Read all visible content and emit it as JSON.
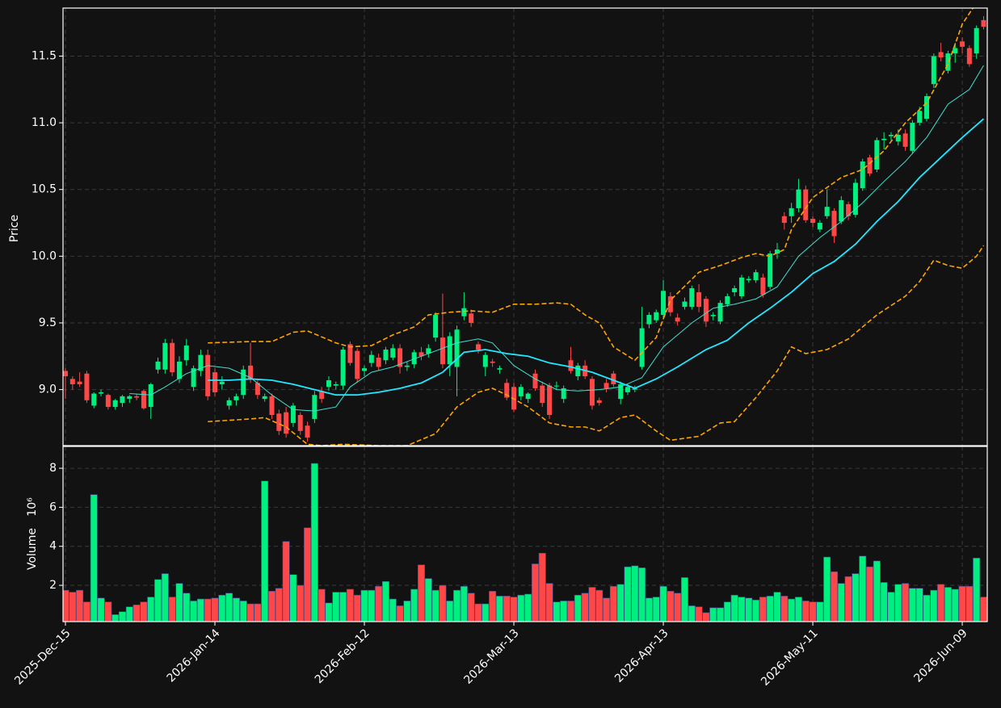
{
  "chart_data": {
    "type": "candlestick",
    "ylabel": "Price",
    "volume_label": "Volume",
    "volume_scale_label": "10⁶",
    "up_color": "#00f080",
    "down_color": "#ff4747",
    "grid": true,
    "categories": [
      "2025-Dec-15",
      null,
      null,
      null,
      null,
      null,
      null,
      null,
      null,
      null,
      null,
      null,
      null,
      null,
      null,
      null,
      null,
      null,
      null,
      null,
      null,
      "2026-Jan-14",
      null,
      null,
      null,
      null,
      null,
      null,
      null,
      null,
      null,
      null,
      null,
      null,
      null,
      null,
      null,
      null,
      null,
      null,
      null,
      null,
      "2026-Feb-12",
      null,
      null,
      null,
      null,
      null,
      null,
      null,
      null,
      null,
      null,
      null,
      null,
      null,
      null,
      null,
      null,
      null,
      null,
      null,
      null,
      "2026-Mar-13",
      null,
      null,
      null,
      null,
      null,
      null,
      null,
      null,
      null,
      null,
      null,
      null,
      null,
      null,
      null,
      null,
      null,
      null,
      null,
      null,
      "2026-Apr-13",
      null,
      null,
      null,
      null,
      null,
      null,
      null,
      null,
      null,
      null,
      null,
      null,
      null,
      null,
      null,
      null,
      null,
      null,
      null,
      null,
      "2026-May-11",
      null,
      null,
      null,
      null,
      null,
      null,
      null,
      null,
      null,
      null,
      null,
      null,
      null,
      null,
      null,
      null,
      null,
      null,
      null,
      null,
      "2026-Jun-09",
      null,
      null,
      null
    ],
    "ohlc": [
      [
        9.14,
        9.16,
        8.93,
        9.1
      ],
      [
        9.08,
        9.1,
        9.0,
        9.04
      ],
      [
        9.06,
        9.13,
        9.02,
        9.04
      ],
      [
        9.12,
        9.14,
        8.9,
        8.92
      ],
      [
        8.88,
        8.98,
        8.86,
        8.97
      ],
      [
        8.97,
        9.0,
        8.95,
        8.98
      ],
      [
        8.96,
        8.97,
        8.85,
        8.87
      ],
      [
        8.87,
        8.93,
        8.85,
        8.92
      ],
      [
        8.9,
        8.96,
        8.87,
        8.95
      ],
      [
        8.93,
        8.96,
        8.9,
        8.95
      ],
      [
        8.95,
        8.97,
        8.92,
        8.94
      ],
      [
        8.99,
        9.0,
        8.85,
        8.86
      ],
      [
        8.87,
        9.05,
        8.78,
        9.04
      ],
      [
        9.15,
        9.24,
        9.12,
        9.21
      ],
      [
        9.15,
        9.38,
        9.12,
        9.35
      ],
      [
        9.35,
        9.38,
        9.1,
        9.13
      ],
      [
        9.08,
        9.25,
        9.05,
        9.21
      ],
      [
        9.22,
        9.38,
        9.18,
        9.33
      ],
      [
        9.02,
        9.18,
        8.99,
        9.16
      ],
      [
        9.14,
        9.3,
        9.1,
        9.26
      ],
      [
        9.26,
        9.3,
        8.92,
        8.95
      ],
      [
        9.13,
        9.16,
        8.95,
        8.98
      ],
      [
        9.04,
        9.1,
        9.0,
        9.06
      ],
      [
        8.88,
        8.94,
        8.85,
        8.92
      ],
      [
        8.92,
        8.97,
        8.88,
        8.95
      ],
      [
        8.96,
        9.18,
        8.93,
        9.15
      ],
      [
        9.18,
        9.35,
        9.05,
        9.08
      ],
      [
        9.05,
        9.08,
        8.93,
        8.96
      ],
      [
        8.93,
        8.97,
        8.91,
        8.95
      ],
      [
        8.95,
        8.97,
        8.78,
        8.81
      ],
      [
        8.82,
        8.85,
        8.66,
        8.69
      ],
      [
        8.83,
        8.87,
        8.64,
        8.67
      ],
      [
        8.75,
        8.9,
        8.72,
        8.88
      ],
      [
        8.81,
        8.83,
        8.66,
        8.69
      ],
      [
        8.73,
        8.76,
        8.61,
        8.64
      ],
      [
        8.78,
        8.99,
        8.75,
        8.96
      ],
      [
        8.99,
        9.02,
        8.9,
        8.93
      ],
      [
        9.02,
        9.1,
        8.99,
        9.07
      ],
      [
        9.03,
        9.06,
        9.0,
        9.04
      ],
      [
        9.03,
        9.32,
        9.0,
        9.3
      ],
      [
        9.34,
        9.36,
        9.18,
        9.2
      ],
      [
        9.29,
        9.31,
        9.05,
        9.08
      ],
      [
        9.14,
        9.18,
        9.1,
        9.16
      ],
      [
        9.2,
        9.29,
        9.17,
        9.26
      ],
      [
        9.24,
        9.27,
        9.14,
        9.17
      ],
      [
        9.22,
        9.32,
        9.19,
        9.3
      ],
      [
        9.24,
        9.34,
        9.22,
        9.31
      ],
      [
        9.31,
        9.34,
        9.12,
        9.17
      ],
      [
        9.17,
        9.21,
        9.14,
        9.18
      ],
      [
        9.19,
        9.3,
        9.16,
        9.28
      ],
      [
        9.28,
        9.32,
        9.22,
        9.25
      ],
      [
        9.27,
        9.34,
        9.24,
        9.31
      ],
      [
        9.39,
        9.58,
        9.36,
        9.56
      ],
      [
        9.39,
        9.72,
        9.16,
        9.19
      ],
      [
        9.19,
        9.43,
        9.1,
        9.4
      ],
      [
        9.17,
        9.48,
        8.95,
        9.45
      ],
      [
        9.55,
        9.73,
        9.52,
        9.61
      ],
      [
        9.57,
        9.6,
        9.47,
        9.5
      ],
      [
        9.34,
        9.36,
        9.27,
        9.3
      ],
      [
        9.17,
        9.28,
        9.1,
        9.26
      ],
      [
        9.21,
        9.23,
        9.17,
        9.2
      ],
      [
        9.15,
        9.18,
        9.12,
        9.16
      ],
      [
        9.05,
        9.08,
        8.92,
        8.94
      ],
      [
        9.02,
        9.05,
        8.83,
        8.85
      ],
      [
        8.95,
        9.04,
        8.92,
        9.02
      ],
      [
        8.93,
        8.98,
        8.9,
        8.97
      ],
      [
        9.12,
        9.15,
        8.99,
        9.01
      ],
      [
        9.03,
        9.06,
        8.87,
        8.9
      ],
      [
        9.03,
        9.05,
        8.78,
        8.81
      ],
      [
        9.03,
        9.06,
        9.0,
        9.03
      ],
      [
        8.93,
        9.03,
        8.9,
        9.01
      ],
      [
        9.22,
        9.32,
        9.12,
        9.14
      ],
      [
        9.1,
        9.2,
        9.07,
        9.18
      ],
      [
        9.18,
        9.22,
        9.08,
        9.1
      ],
      [
        9.08,
        9.1,
        8.85,
        8.88
      ],
      [
        8.92,
        8.94,
        8.88,
        8.9
      ],
      [
        9.05,
        9.08,
        8.98,
        9.01
      ],
      [
        9.12,
        9.14,
        9.02,
        9.04
      ],
      [
        8.93,
        9.06,
        8.89,
        9.04
      ],
      [
        8.98,
        9.04,
        8.96,
        9.02
      ],
      [
        9.0,
        9.03,
        8.98,
        9.01
      ],
      [
        9.17,
        9.62,
        9.15,
        9.46
      ],
      [
        9.49,
        9.58,
        9.46,
        9.56
      ],
      [
        9.52,
        9.6,
        9.5,
        9.58
      ],
      [
        9.56,
        9.82,
        9.54,
        9.74
      ],
      [
        9.7,
        9.73,
        9.55,
        9.58
      ],
      [
        9.54,
        9.57,
        9.48,
        9.51
      ],
      [
        9.62,
        9.69,
        9.6,
        9.66
      ],
      [
        9.62,
        9.78,
        9.6,
        9.76
      ],
      [
        9.73,
        9.79,
        9.58,
        9.62
      ],
      [
        9.68,
        9.7,
        9.47,
        9.51
      ],
      [
        9.55,
        9.58,
        9.52,
        9.56
      ],
      [
        9.51,
        9.67,
        9.49,
        9.65
      ],
      [
        9.64,
        9.72,
        9.62,
        9.7
      ],
      [
        9.73,
        9.78,
        9.7,
        9.76
      ],
      [
        9.7,
        9.86,
        9.68,
        9.84
      ],
      [
        9.82,
        9.85,
        9.8,
        9.83
      ],
      [
        9.82,
        9.9,
        9.8,
        9.88
      ],
      [
        9.84,
        9.87,
        9.69,
        9.71
      ],
      [
        9.77,
        10.04,
        9.75,
        10.02
      ],
      [
        10.02,
        10.1,
        9.98,
        10.05
      ],
      [
        10.3,
        10.33,
        10.2,
        10.25
      ],
      [
        10.3,
        10.4,
        10.25,
        10.36
      ],
      [
        10.36,
        10.58,
        10.33,
        10.5
      ],
      [
        10.5,
        10.53,
        10.25,
        10.27
      ],
      [
        10.28,
        10.3,
        10.22,
        10.25
      ],
      [
        10.2,
        10.27,
        10.18,
        10.25
      ],
      [
        10.3,
        10.5,
        10.28,
        10.37
      ],
      [
        10.34,
        10.36,
        10.1,
        10.15
      ],
      [
        10.26,
        10.45,
        10.24,
        10.42
      ],
      [
        10.39,
        10.41,
        10.27,
        10.3
      ],
      [
        10.31,
        10.58,
        10.29,
        10.55
      ],
      [
        10.51,
        10.73,
        10.49,
        10.71
      ],
      [
        10.74,
        10.76,
        10.6,
        10.62
      ],
      [
        10.65,
        10.89,
        10.63,
        10.87
      ],
      [
        10.87,
        10.93,
        10.8,
        10.88
      ],
      [
        10.9,
        10.93,
        10.87,
        10.91
      ],
      [
        10.86,
        10.95,
        10.83,
        10.91
      ],
      [
        10.92,
        10.95,
        10.79,
        10.82
      ],
      [
        10.79,
        11.02,
        10.77,
        11.0
      ],
      [
        11.0,
        11.12,
        10.98,
        11.09
      ],
      [
        11.03,
        11.22,
        11.01,
        11.2
      ],
      [
        11.29,
        11.52,
        11.26,
        11.5
      ],
      [
        11.53,
        11.6,
        11.46,
        11.49
      ],
      [
        11.39,
        11.54,
        11.37,
        11.52
      ],
      [
        11.52,
        11.6,
        11.45,
        11.56
      ],
      [
        11.61,
        11.64,
        11.52,
        11.57
      ],
      [
        11.56,
        11.58,
        11.42,
        11.44
      ],
      [
        11.52,
        11.73,
        11.48,
        11.71
      ],
      [
        11.77,
        11.8,
        11.7,
        11.72
      ]
    ],
    "volume": [
      1.75,
      1.65,
      1.75,
      1.15,
      6.65,
      1.35,
      1.15,
      0.5,
      0.65,
      0.9,
      1.0,
      1.15,
      1.4,
      2.3,
      2.6,
      1.4,
      2.1,
      1.6,
      1.2,
      1.3,
      1.3,
      1.35,
      1.5,
      1.6,
      1.35,
      1.2,
      1.05,
      1.05,
      7.35,
      1.7,
      1.85,
      4.25,
      2.55,
      2.0,
      4.95,
      8.25,
      1.8,
      1.1,
      1.65,
      1.65,
      1.8,
      1.5,
      1.75,
      1.75,
      1.95,
      2.2,
      1.3,
      0.95,
      1.2,
      1.8,
      3.05,
      2.35,
      1.75,
      2.0,
      1.2,
      1.75,
      1.95,
      1.6,
      1.05,
      1.05,
      1.7,
      1.45,
      1.45,
      1.4,
      1.5,
      1.55,
      3.1,
      3.65,
      2.1,
      1.15,
      1.2,
      1.2,
      1.5,
      1.6,
      1.9,
      1.75,
      1.35,
      1.95,
      2.05,
      2.95,
      3.0,
      2.9,
      1.35,
      1.4,
      1.95,
      1.7,
      1.6,
      2.4,
      0.95,
      0.9,
      0.6,
      0.85,
      0.85,
      1.15,
      1.5,
      1.4,
      1.35,
      1.25,
      1.4,
      1.45,
      1.65,
      1.45,
      1.3,
      1.4,
      1.2,
      1.15,
      1.15,
      3.45,
      2.7,
      2.1,
      2.45,
      2.6,
      3.5,
      2.95,
      3.25,
      2.15,
      1.65,
      2.05,
      2.1,
      1.85,
      1.85,
      1.5,
      1.75,
      2.05,
      1.9,
      1.8,
      1.95,
      1.95,
      3.4,
      1.4
    ],
    "overlays": [
      {
        "color": "#40e0d0",
        "linestyle": "solid",
        "x": [
          9,
          12,
          14,
          17,
          20,
          23,
          26,
          29,
          32,
          35,
          38,
          40,
          43,
          46,
          49,
          52,
          55,
          58,
          60,
          63,
          66,
          69,
          72,
          75,
          78,
          81,
          84,
          88,
          91,
          94,
          97,
          100,
          103,
          106,
          109,
          112,
          115,
          118,
          121,
          124,
          127,
          129
        ],
        "values": [
          8.97,
          8.96,
          9.02,
          9.12,
          9.18,
          9.16,
          9.09,
          8.96,
          8.85,
          8.84,
          8.87,
          9.02,
          9.13,
          9.17,
          9.23,
          9.29,
          9.35,
          9.38,
          9.35,
          9.18,
          9.08,
          9.0,
          8.99,
          9.0,
          9.02,
          9.09,
          9.32,
          9.5,
          9.61,
          9.64,
          9.68,
          9.77,
          10.0,
          10.14,
          10.26,
          10.4,
          10.56,
          10.71,
          10.89,
          11.14,
          11.25,
          11.43
        ]
      },
      {
        "color": "#22e8ff",
        "linestyle": "solid",
        "x": [
          20,
          23,
          26,
          29,
          32,
          35,
          38,
          41,
          44,
          47,
          50,
          53,
          56,
          59,
          62,
          65,
          68,
          71,
          74,
          77,
          80,
          83,
          86,
          90,
          93,
          96,
          99,
          102,
          105,
          108,
          111,
          114,
          117,
          120,
          123,
          126,
          129
        ],
        "values": [
          9.07,
          9.07,
          9.08,
          9.07,
          9.04,
          9.0,
          8.96,
          8.96,
          8.98,
          9.01,
          9.05,
          9.13,
          9.28,
          9.3,
          9.27,
          9.25,
          9.2,
          9.17,
          9.13,
          9.07,
          9.01,
          9.08,
          9.17,
          9.3,
          9.37,
          9.5,
          9.61,
          9.73,
          9.87,
          9.96,
          10.09,
          10.26,
          10.41,
          10.59,
          10.74,
          10.89,
          11.03
        ]
      },
      {
        "color": "#ffa500",
        "linestyle": "dashed",
        "x": [
          20,
          26,
          29,
          32,
          34,
          38,
          40,
          43,
          46,
          49,
          51,
          54,
          57,
          60,
          63,
          66,
          69,
          71,
          73,
          75,
          77,
          80,
          83,
          85,
          89,
          92,
          95,
          97,
          99,
          101,
          102,
          105,
          109,
          112,
          115,
          118,
          121,
          124,
          126,
          128
        ],
        "values": [
          9.35,
          9.36,
          9.36,
          9.43,
          9.44,
          9.35,
          9.32,
          9.33,
          9.41,
          9.47,
          9.56,
          9.58,
          9.59,
          9.58,
          9.64,
          9.64,
          9.65,
          9.64,
          9.56,
          9.5,
          9.32,
          9.22,
          9.39,
          9.67,
          9.88,
          9.93,
          9.99,
          10.02,
          10.0,
          10.05,
          10.2,
          10.44,
          10.59,
          10.65,
          10.79,
          11.0,
          11.15,
          11.44,
          11.74,
          11.9
        ]
      },
      {
        "color": "#ffa500",
        "linestyle": "dashed",
        "x": [
          20,
          26,
          28,
          31,
          34,
          36,
          39,
          44,
          48,
          52,
          55,
          58,
          60,
          62,
          65,
          68,
          71,
          73,
          75,
          78,
          80,
          83,
          85,
          89,
          92,
          94,
          97,
          100,
          102,
          104,
          107,
          110,
          114,
          118,
          120,
          122,
          124,
          126,
          128,
          129
        ],
        "values": [
          8.76,
          8.78,
          8.79,
          8.72,
          8.59,
          8.58,
          8.59,
          8.58,
          8.58,
          8.67,
          8.87,
          8.98,
          9.01,
          8.96,
          8.87,
          8.75,
          8.72,
          8.72,
          8.69,
          8.79,
          8.81,
          8.69,
          8.62,
          8.65,
          8.75,
          8.76,
          8.94,
          9.14,
          9.32,
          9.27,
          9.3,
          9.38,
          9.56,
          9.7,
          9.81,
          9.97,
          9.93,
          9.91,
          10.0,
          10.08
        ]
      }
    ],
    "ylim": [
      8.58,
      11.86
    ],
    "yticks": [
      {
        "value": 9,
        "label": "9.0"
      },
      9.5,
      {
        "value": 10,
        "label": "10.0"
      },
      10.5,
      {
        "value": 11,
        "label": "11.0"
      },
      11.5
    ],
    "volume_ylim": [
      0.14,
      9.12
    ],
    "volume_yticks": [
      2,
      4,
      6,
      8
    ]
  }
}
